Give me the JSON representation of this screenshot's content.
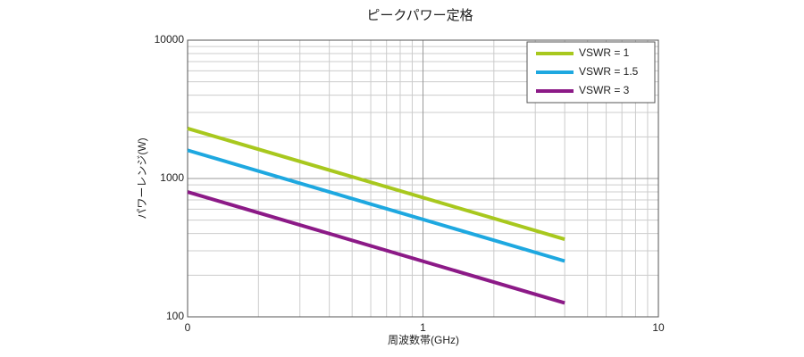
{
  "chart_data": {
    "type": "line",
    "title": "ピークパワー定格",
    "x_label": "周波数帯(GHz)",
    "y_label": "パワーレンジ(W)",
    "x": [
      0.1,
      4
    ],
    "series": [
      {
        "name": "VSWR = 1",
        "color": "#a8c81e",
        "values": [
          2300,
          364
        ]
      },
      {
        "name": "VSWR = 1.5",
        "color": "#1ea8e0",
        "values": [
          1600,
          253
        ]
      },
      {
        "name": "VSWR = 3",
        "color": "#8c1a87",
        "values": [
          800,
          126
        ]
      }
    ],
    "xlim": [
      0.1,
      10
    ],
    "xticks": [
      {
        "value": 0.1,
        "label": "0"
      },
      1,
      10
    ],
    "ylim": [
      100,
      10000
    ],
    "yticks": [
      100,
      1000,
      10000
    ],
    "log_x": true,
    "log_y": true,
    "grid": true,
    "minor_grid": true,
    "legend": "upper right"
  }
}
